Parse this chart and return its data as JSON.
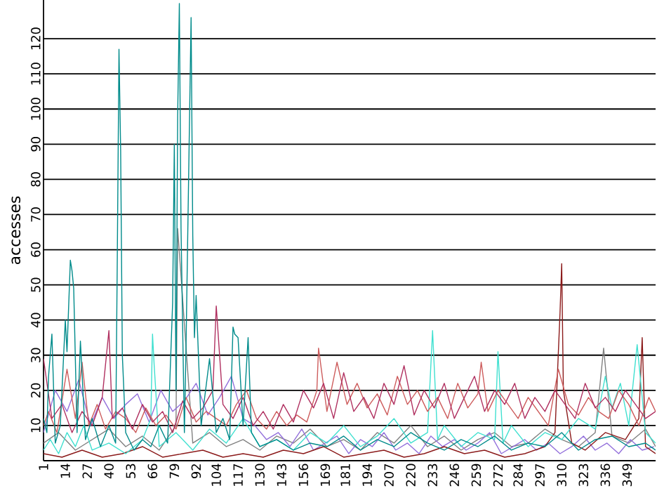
{
  "chart_data": {
    "type": "line",
    "ylabel": "accesses",
    "grid": "y",
    "marker": "none",
    "line_style": "solid",
    "xlim": [
      1,
      366
    ],
    "ylim": [
      0,
      131
    ],
    "xticks": [
      1,
      14,
      27,
      40,
      53,
      66,
      79,
      92,
      104,
      117,
      130,
      143,
      156,
      169,
      181,
      194,
      207,
      220,
      233,
      246,
      259,
      272,
      284,
      297,
      310,
      323,
      336,
      349
    ],
    "yticks": [
      10,
      20,
      30,
      40,
      50,
      60,
      70,
      80,
      90,
      100,
      110,
      120
    ],
    "series": [
      {
        "color": "#808080",
        "x": [
          1,
          10,
          20,
          30,
          40,
          50,
          60,
          70,
          80,
          81,
          90,
          100,
          110,
          120,
          130,
          140,
          150,
          160,
          170,
          180,
          190,
          200,
          210,
          220,
          230,
          240,
          250,
          260,
          270,
          280,
          290,
          300,
          310,
          320,
          330,
          335,
          340,
          350,
          360,
          366
        ],
        "values": [
          5,
          8,
          3,
          6,
          9,
          4,
          7,
          3,
          10,
          66,
          5,
          8,
          4,
          6,
          3,
          7,
          5,
          9,
          4,
          6,
          3,
          8,
          5,
          10,
          4,
          7,
          3,
          6,
          8,
          4,
          5,
          9,
          6,
          4,
          8,
          32,
          7,
          5,
          9,
          4
        ]
      },
      {
        "color": "#9370db",
        "x": [
          1,
          8,
          15,
          22,
          29,
          36,
          43,
          50,
          57,
          64,
          71,
          78,
          85,
          92,
          99,
          106,
          113,
          120,
          127,
          134,
          141,
          148,
          155,
          162,
          169,
          176,
          183,
          190,
          197,
          204,
          211,
          218,
          225,
          232,
          239,
          246,
          253,
          260,
          267,
          274,
          281,
          288,
          295,
          302,
          309,
          316,
          323,
          330,
          337,
          344,
          351,
          358,
          365
        ],
        "values": [
          8,
          20,
          14,
          23,
          10,
          18,
          12,
          16,
          19,
          11,
          20,
          14,
          17,
          22,
          13,
          18,
          24,
          12,
          10,
          6,
          8,
          4,
          9,
          3,
          5,
          7,
          2,
          6,
          4,
          8,
          3,
          5,
          2,
          7,
          4,
          6,
          3,
          5,
          8,
          2,
          4,
          6,
          3,
          5,
          2,
          4,
          7,
          3,
          5,
          2,
          6,
          3,
          4
        ]
      },
      {
        "color": "#8b1a1a",
        "x": [
          1,
          12,
          24,
          36,
          48,
          60,
          72,
          84,
          96,
          108,
          120,
          132,
          144,
          156,
          168,
          180,
          192,
          204,
          216,
          228,
          240,
          252,
          264,
          276,
          288,
          300,
          306,
          309,
          310,
          311,
          316,
          324,
          336,
          348,
          356,
          358,
          360,
          366
        ],
        "values": [
          2,
          1,
          3,
          1,
          2,
          4,
          1,
          2,
          3,
          1,
          2,
          1,
          3,
          2,
          4,
          1,
          2,
          3,
          1,
          2,
          4,
          2,
          3,
          1,
          2,
          4,
          8,
          42,
          56,
          20,
          5,
          3,
          8,
          6,
          12,
          35,
          4,
          2
        ]
      },
      {
        "color": "#40e0d0",
        "x": [
          1,
          5,
          10,
          15,
          20,
          25,
          30,
          40,
          50,
          60,
          65,
          66,
          67,
          70,
          80,
          90,
          100,
          110,
          120,
          130,
          140,
          150,
          160,
          170,
          180,
          190,
          200,
          210,
          220,
          230,
          233,
          236,
          240,
          250,
          260,
          270,
          272,
          275,
          280,
          290,
          300,
          310,
          320,
          330,
          336,
          340,
          345,
          350,
          355,
          360,
          366
        ],
        "values": [
          3,
          6,
          2,
          8,
          4,
          10,
          3,
          5,
          2,
          6,
          12,
          36,
          27,
          4,
          8,
          3,
          9,
          5,
          12,
          4,
          6,
          3,
          8,
          5,
          10,
          4,
          7,
          12,
          5,
          8,
          37,
          6,
          10,
          4,
          8,
          6,
          31,
          5,
          10,
          4,
          8,
          6,
          12,
          9,
          24,
          15,
          22,
          10,
          33,
          8,
          5
        ]
      },
      {
        "color": "#cd5c5c",
        "x": [
          1,
          4,
          9,
          15,
          20,
          24,
          28,
          33,
          38,
          44,
          50,
          56,
          62,
          68,
          74,
          80,
          86,
          92,
          98,
          104,
          110,
          116,
          122,
          128,
          134,
          140,
          146,
          152,
          158,
          164,
          165,
          170,
          176,
          182,
          188,
          194,
          200,
          206,
          212,
          218,
          224,
          230,
          236,
          242,
          248,
          254,
          260,
          262,
          266,
          272,
          278,
          284,
          290,
          296,
          302,
          308,
          314,
          320,
          326,
          332,
          338,
          344,
          350,
          356,
          362,
          366
        ],
        "values": [
          10,
          14,
          8,
          26,
          12,
          28,
          10,
          16,
          9,
          14,
          12,
          8,
          15,
          10,
          13,
          9,
          18,
          11,
          14,
          12,
          10,
          16,
          20,
          12,
          9,
          14,
          10,
          13,
          11,
          20,
          32,
          14,
          28,
          16,
          22,
          15,
          19,
          13,
          24,
          16,
          20,
          14,
          18,
          12,
          22,
          15,
          19,
          28,
          14,
          20,
          16,
          12,
          18,
          14,
          10,
          26,
          16,
          13,
          18,
          14,
          12,
          20,
          16,
          10,
          18,
          14
        ]
      },
      {
        "color": "#b03060",
        "x": [
          1,
          6,
          12,
          18,
          24,
          30,
          36,
          40,
          42,
          48,
          54,
          60,
          66,
          72,
          78,
          84,
          90,
          96,
          102,
          104,
          105,
          108,
          114,
          120,
          126,
          132,
          138,
          144,
          150,
          156,
          162,
          168,
          174,
          180,
          186,
          192,
          198,
          204,
          210,
          216,
          222,
          228,
          234,
          240,
          246,
          252,
          258,
          264,
          270,
          276,
          282,
          288,
          294,
          300,
          306,
          312,
          318,
          324,
          330,
          336,
          342,
          348,
          354,
          360,
          366
        ],
        "values": [
          29,
          12,
          16,
          8,
          14,
          10,
          18,
          37,
          12,
          15,
          9,
          16,
          11,
          14,
          8,
          17,
          12,
          15,
          20,
          44,
          37,
          16,
          12,
          18,
          10,
          14,
          9,
          16,
          11,
          20,
          15,
          22,
          12,
          25,
          14,
          18,
          12,
          22,
          16,
          27,
          13,
          20,
          15,
          22,
          12,
          18,
          24,
          14,
          20,
          16,
          22,
          12,
          18,
          14,
          20,
          16,
          12,
          22,
          15,
          18,
          14,
          20,
          16,
          12,
          14
        ]
      },
      {
        "color": "#008b8b",
        "x": [
          1,
          3,
          4,
          6,
          8,
          11,
          14,
          15,
          17,
          18,
          19,
          21,
          23,
          26,
          30,
          35,
          40,
          44,
          45,
          46,
          47,
          48,
          50,
          55,
          60,
          65,
          70,
          75,
          78,
          79,
          80,
          81,
          82,
          83,
          85,
          86,
          88,
          89,
          90,
          91,
          92,
          95,
          100,
          104,
          108,
          112,
          114,
          115,
          117,
          120,
          123,
          125,
          130,
          140,
          150,
          160,
          170,
          180,
          190,
          200,
          210,
          220,
          230,
          240,
          250,
          260,
          270,
          280,
          290,
          300,
          310,
          320,
          330,
          340,
          350,
          360,
          366
        ],
        "values": [
          12,
          8,
          24,
          36,
          5,
          10,
          40,
          31,
          57,
          54,
          49,
          8,
          34,
          6,
          12,
          4,
          10,
          5,
          58,
          117,
          88,
          30,
          8,
          3,
          6,
          4,
          10,
          5,
          45,
          90,
          20,
          98,
          130,
          66,
          8,
          33,
          95,
          126,
          64,
          35,
          47,
          10,
          29,
          8,
          12,
          6,
          38,
          36,
          35,
          10,
          35,
          8,
          4,
          6,
          3,
          5,
          4,
          7,
          3,
          6,
          4,
          8,
          5,
          3,
          6,
          4,
          7,
          3,
          5,
          4,
          8,
          3,
          6,
          7,
          4,
          5,
          3
        ]
      }
    ]
  }
}
